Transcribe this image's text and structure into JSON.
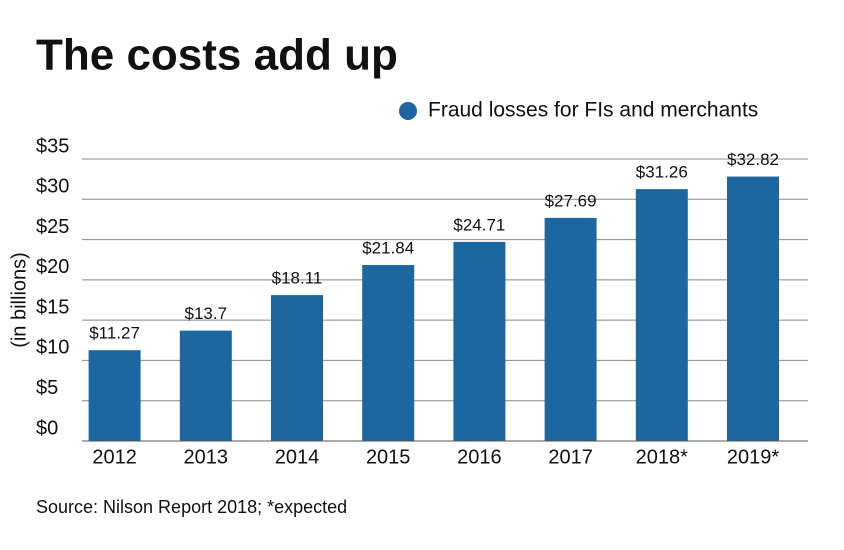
{
  "chart_data": {
    "type": "bar",
    "title": "The costs add up",
    "ylabel": "(in billions)",
    "note": "Source: Nilson Report 2018; *expected",
    "categories": [
      "2012",
      "2013",
      "2014",
      "2015",
      "2016",
      "2017",
      "2018*",
      "2019*"
    ],
    "series": [
      {
        "name": "Fraud losses for FIs and merchants",
        "color": "#1c67a0",
        "values": [
          11.27,
          13.7,
          18.11,
          21.84,
          24.71,
          27.69,
          31.26,
          32.82
        ],
        "value_labels": [
          "$11.27",
          "$13.7",
          "$18.11",
          "$21.84",
          "$24.71",
          "$27.69",
          "$31.26",
          "$32.82"
        ]
      }
    ],
    "ylim": [
      0,
      35
    ],
    "yticks": [
      {
        "value": 0,
        "label": "$0"
      },
      {
        "value": 5,
        "label": "$5"
      },
      {
        "value": 10,
        "label": "$10"
      },
      {
        "value": 15,
        "label": "$15"
      },
      {
        "value": 20,
        "label": "$20"
      },
      {
        "value": 25,
        "label": "$25"
      },
      {
        "value": 30,
        "label": "$30"
      },
      {
        "value": 35,
        "label": "$35"
      }
    ],
    "grid": true,
    "legend": "top-right"
  }
}
